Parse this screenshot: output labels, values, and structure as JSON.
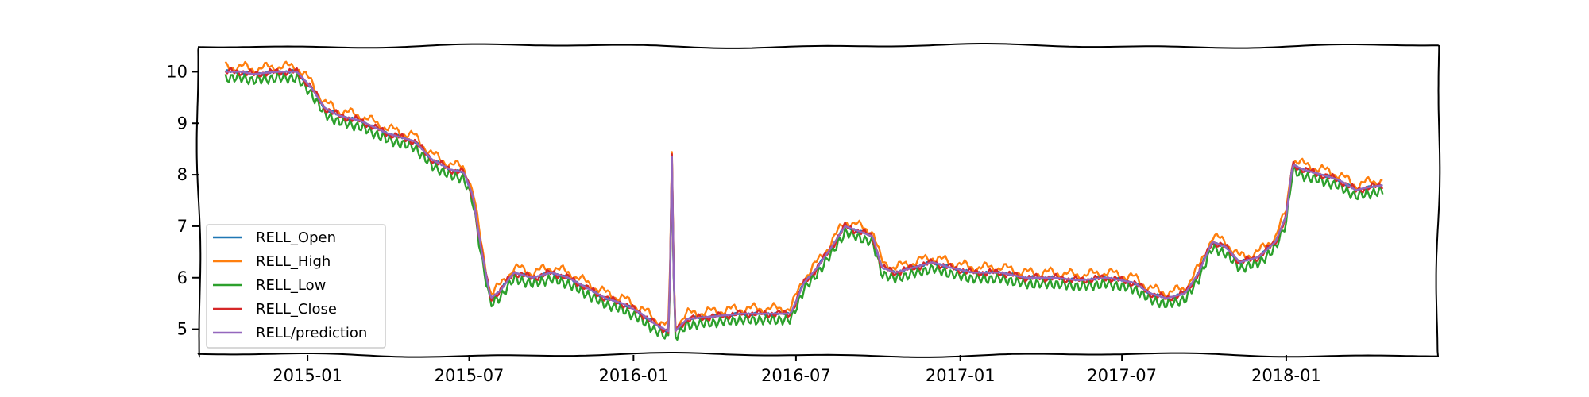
{
  "chart_data": {
    "type": "line",
    "title": "",
    "xlabel": "",
    "ylabel": "",
    "xlim": [
      "2014-09-01",
      "2018-06-20"
    ],
    "ylim": [
      4.5,
      10.5
    ],
    "grid": false,
    "legend_position": "lower-left",
    "x_ticks": [
      "2015-01",
      "2015-07",
      "2016-01",
      "2016-07",
      "2017-01",
      "2017-07",
      "2018-01"
    ],
    "y_ticks": [
      "5",
      "6",
      "7",
      "8",
      "9",
      "10"
    ],
    "series": [
      {
        "name": "RELL_Open",
        "color": "#1f77b4",
        "offset": 0.0,
        "jitter": 0.04
      },
      {
        "name": "RELL_High",
        "color": "#ff7f0e",
        "offset": 0.1,
        "jitter": 0.12
      },
      {
        "name": "RELL_Low",
        "color": "#2ca02c",
        "offset": -0.12,
        "jitter": 0.09
      },
      {
        "name": "RELL_Close",
        "color": "#d62728",
        "offset": 0.0,
        "jitter": 0.08
      },
      {
        "name": "RELL/prediction",
        "color": "#9467bd",
        "offset": 0.0,
        "jitter": 0.0
      }
    ],
    "trend": [
      [
        "2014-10-01",
        10.0
      ],
      [
        "2014-10-20",
        10.0
      ],
      [
        "2014-11-01",
        9.95
      ],
      [
        "2014-11-15",
        9.98
      ],
      [
        "2014-12-01",
        10.0
      ],
      [
        "2014-12-20",
        10.0
      ],
      [
        "2015-01-05",
        9.7
      ],
      [
        "2015-01-20",
        9.3
      ],
      [
        "2015-02-05",
        9.15
      ],
      [
        "2015-03-01",
        9.05
      ],
      [
        "2015-04-01",
        8.8
      ],
      [
        "2015-05-01",
        8.65
      ],
      [
        "2015-05-20",
        8.3
      ],
      [
        "2015-06-10",
        8.1
      ],
      [
        "2015-06-25",
        8.05
      ],
      [
        "2015-07-05",
        7.6
      ],
      [
        "2015-07-15",
        6.5
      ],
      [
        "2015-07-25",
        5.6
      ],
      [
        "2015-08-05",
        5.75
      ],
      [
        "2015-08-20",
        6.1
      ],
      [
        "2015-09-10",
        6.0
      ],
      [
        "2015-10-01",
        6.1
      ],
      [
        "2015-10-20",
        6.0
      ],
      [
        "2015-11-10",
        5.8
      ],
      [
        "2015-12-01",
        5.6
      ],
      [
        "2015-12-20",
        5.5
      ],
      [
        "2016-01-10",
        5.3
      ],
      [
        "2016-01-25",
        5.1
      ],
      [
        "2016-02-10",
        4.95
      ],
      [
        "2016-02-13",
        8.35
      ],
      [
        "2016-02-16",
        4.95
      ],
      [
        "2016-03-01",
        5.2
      ],
      [
        "2016-04-01",
        5.25
      ],
      [
        "2016-05-01",
        5.3
      ],
      [
        "2016-06-01",
        5.3
      ],
      [
        "2016-06-25",
        5.3
      ],
      [
        "2016-07-10",
        5.9
      ],
      [
        "2016-07-25",
        6.2
      ],
      [
        "2016-08-10",
        6.6
      ],
      [
        "2016-08-25",
        7.0
      ],
      [
        "2016-09-10",
        6.9
      ],
      [
        "2016-09-25",
        6.8
      ],
      [
        "2016-10-05",
        6.2
      ],
      [
        "2016-10-20",
        6.1
      ],
      [
        "2016-11-10",
        6.2
      ],
      [
        "2016-12-01",
        6.3
      ],
      [
        "2016-12-20",
        6.2
      ],
      [
        "2017-01-15",
        6.1
      ],
      [
        "2017-02-15",
        6.1
      ],
      [
        "2017-03-15",
        6.0
      ],
      [
        "2017-04-15",
        6.0
      ],
      [
        "2017-05-15",
        5.95
      ],
      [
        "2017-06-15",
        6.0
      ],
      [
        "2017-07-15",
        5.9
      ],
      [
        "2017-08-01",
        5.7
      ],
      [
        "2017-08-20",
        5.6
      ],
      [
        "2017-09-10",
        5.7
      ],
      [
        "2017-09-25",
        6.1
      ],
      [
        "2017-10-10",
        6.7
      ],
      [
        "2017-10-25",
        6.6
      ],
      [
        "2017-11-10",
        6.3
      ],
      [
        "2017-12-01",
        6.4
      ],
      [
        "2017-12-20",
        6.7
      ],
      [
        "2018-01-01",
        7.2
      ],
      [
        "2018-01-08",
        8.2
      ],
      [
        "2018-01-20",
        8.1
      ],
      [
        "2018-02-10",
        8.0
      ],
      [
        "2018-03-01",
        7.9
      ],
      [
        "2018-03-20",
        7.7
      ],
      [
        "2018-04-01",
        7.75
      ],
      [
        "2018-04-20",
        7.8
      ]
    ]
  }
}
